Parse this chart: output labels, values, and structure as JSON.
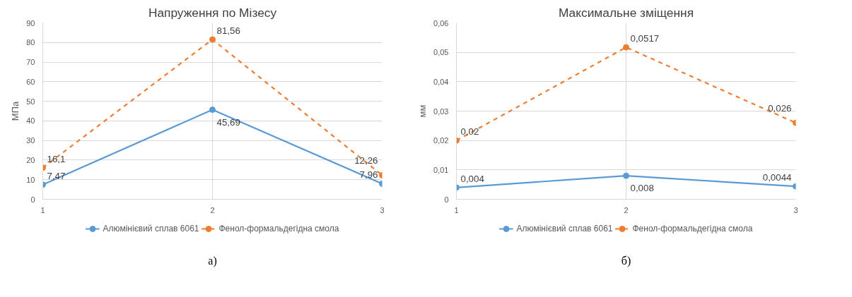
{
  "chart_data": [
    {
      "type": "line",
      "title": "Напруження по Мізесу",
      "ylabel": "МПа",
      "x": [
        1,
        2,
        3
      ],
      "xlim": [
        1,
        3
      ],
      "xticks": [
        1,
        2,
        3
      ],
      "ylim": [
        0,
        90
      ],
      "yticks": [
        0,
        10,
        20,
        30,
        40,
        50,
        60,
        70,
        80,
        90
      ],
      "grid": true,
      "legend": "bottom",
      "marker": "circle",
      "annotations": [
        "а)"
      ],
      "series": [
        {
          "name": "Алюмінієвий сплав 6061",
          "color": "#5b9bd5",
          "line_style": "solid",
          "values": [
            7.47,
            45.69,
            7.96
          ],
          "value_labels": [
            "7,47",
            "45,69",
            "7,96"
          ]
        },
        {
          "name": "Фенол-формальдегідна смола",
          "color": "#ed7d31",
          "line_style": "dashed",
          "values": [
            16.1,
            81.56,
            12.26
          ],
          "value_labels": [
            "16,1",
            "81,56",
            "12,26"
          ]
        }
      ]
    },
    {
      "type": "line",
      "title": "Максимальне зміщення",
      "ylabel": "мм",
      "x": [
        1,
        2,
        3
      ],
      "xlim": [
        1,
        3
      ],
      "xticks": [
        1,
        2,
        3
      ],
      "ylim": [
        0,
        0.06
      ],
      "yticks": [
        0,
        {
          "value": 0.01,
          "label": "0,01"
        },
        {
          "value": 0.02,
          "label": "0,02"
        },
        {
          "value": 0.03,
          "label": "0,03"
        },
        {
          "value": 0.04,
          "label": "0,04"
        },
        {
          "value": 0.05,
          "label": "0,05"
        },
        {
          "value": 0.06,
          "label": "0,06"
        }
      ],
      "grid": true,
      "legend": "bottom",
      "marker": "circle",
      "annotations": [
        "б)"
      ],
      "series": [
        {
          "name": "Алюмінієвий сплав 6061",
          "color": "#5b9bd5",
          "line_style": "solid",
          "values": [
            0.004,
            0.008,
            0.0044
          ],
          "value_labels": [
            "0,004",
            "0,008",
            "0,0044"
          ]
        },
        {
          "name": "Фенол-формальдегідна смола",
          "color": "#ed7d31",
          "line_style": "dashed",
          "values": [
            0.02,
            0.0517,
            0.026
          ],
          "value_labels": [
            "0,02",
            "0,0517",
            "0,026"
          ]
        }
      ]
    }
  ]
}
